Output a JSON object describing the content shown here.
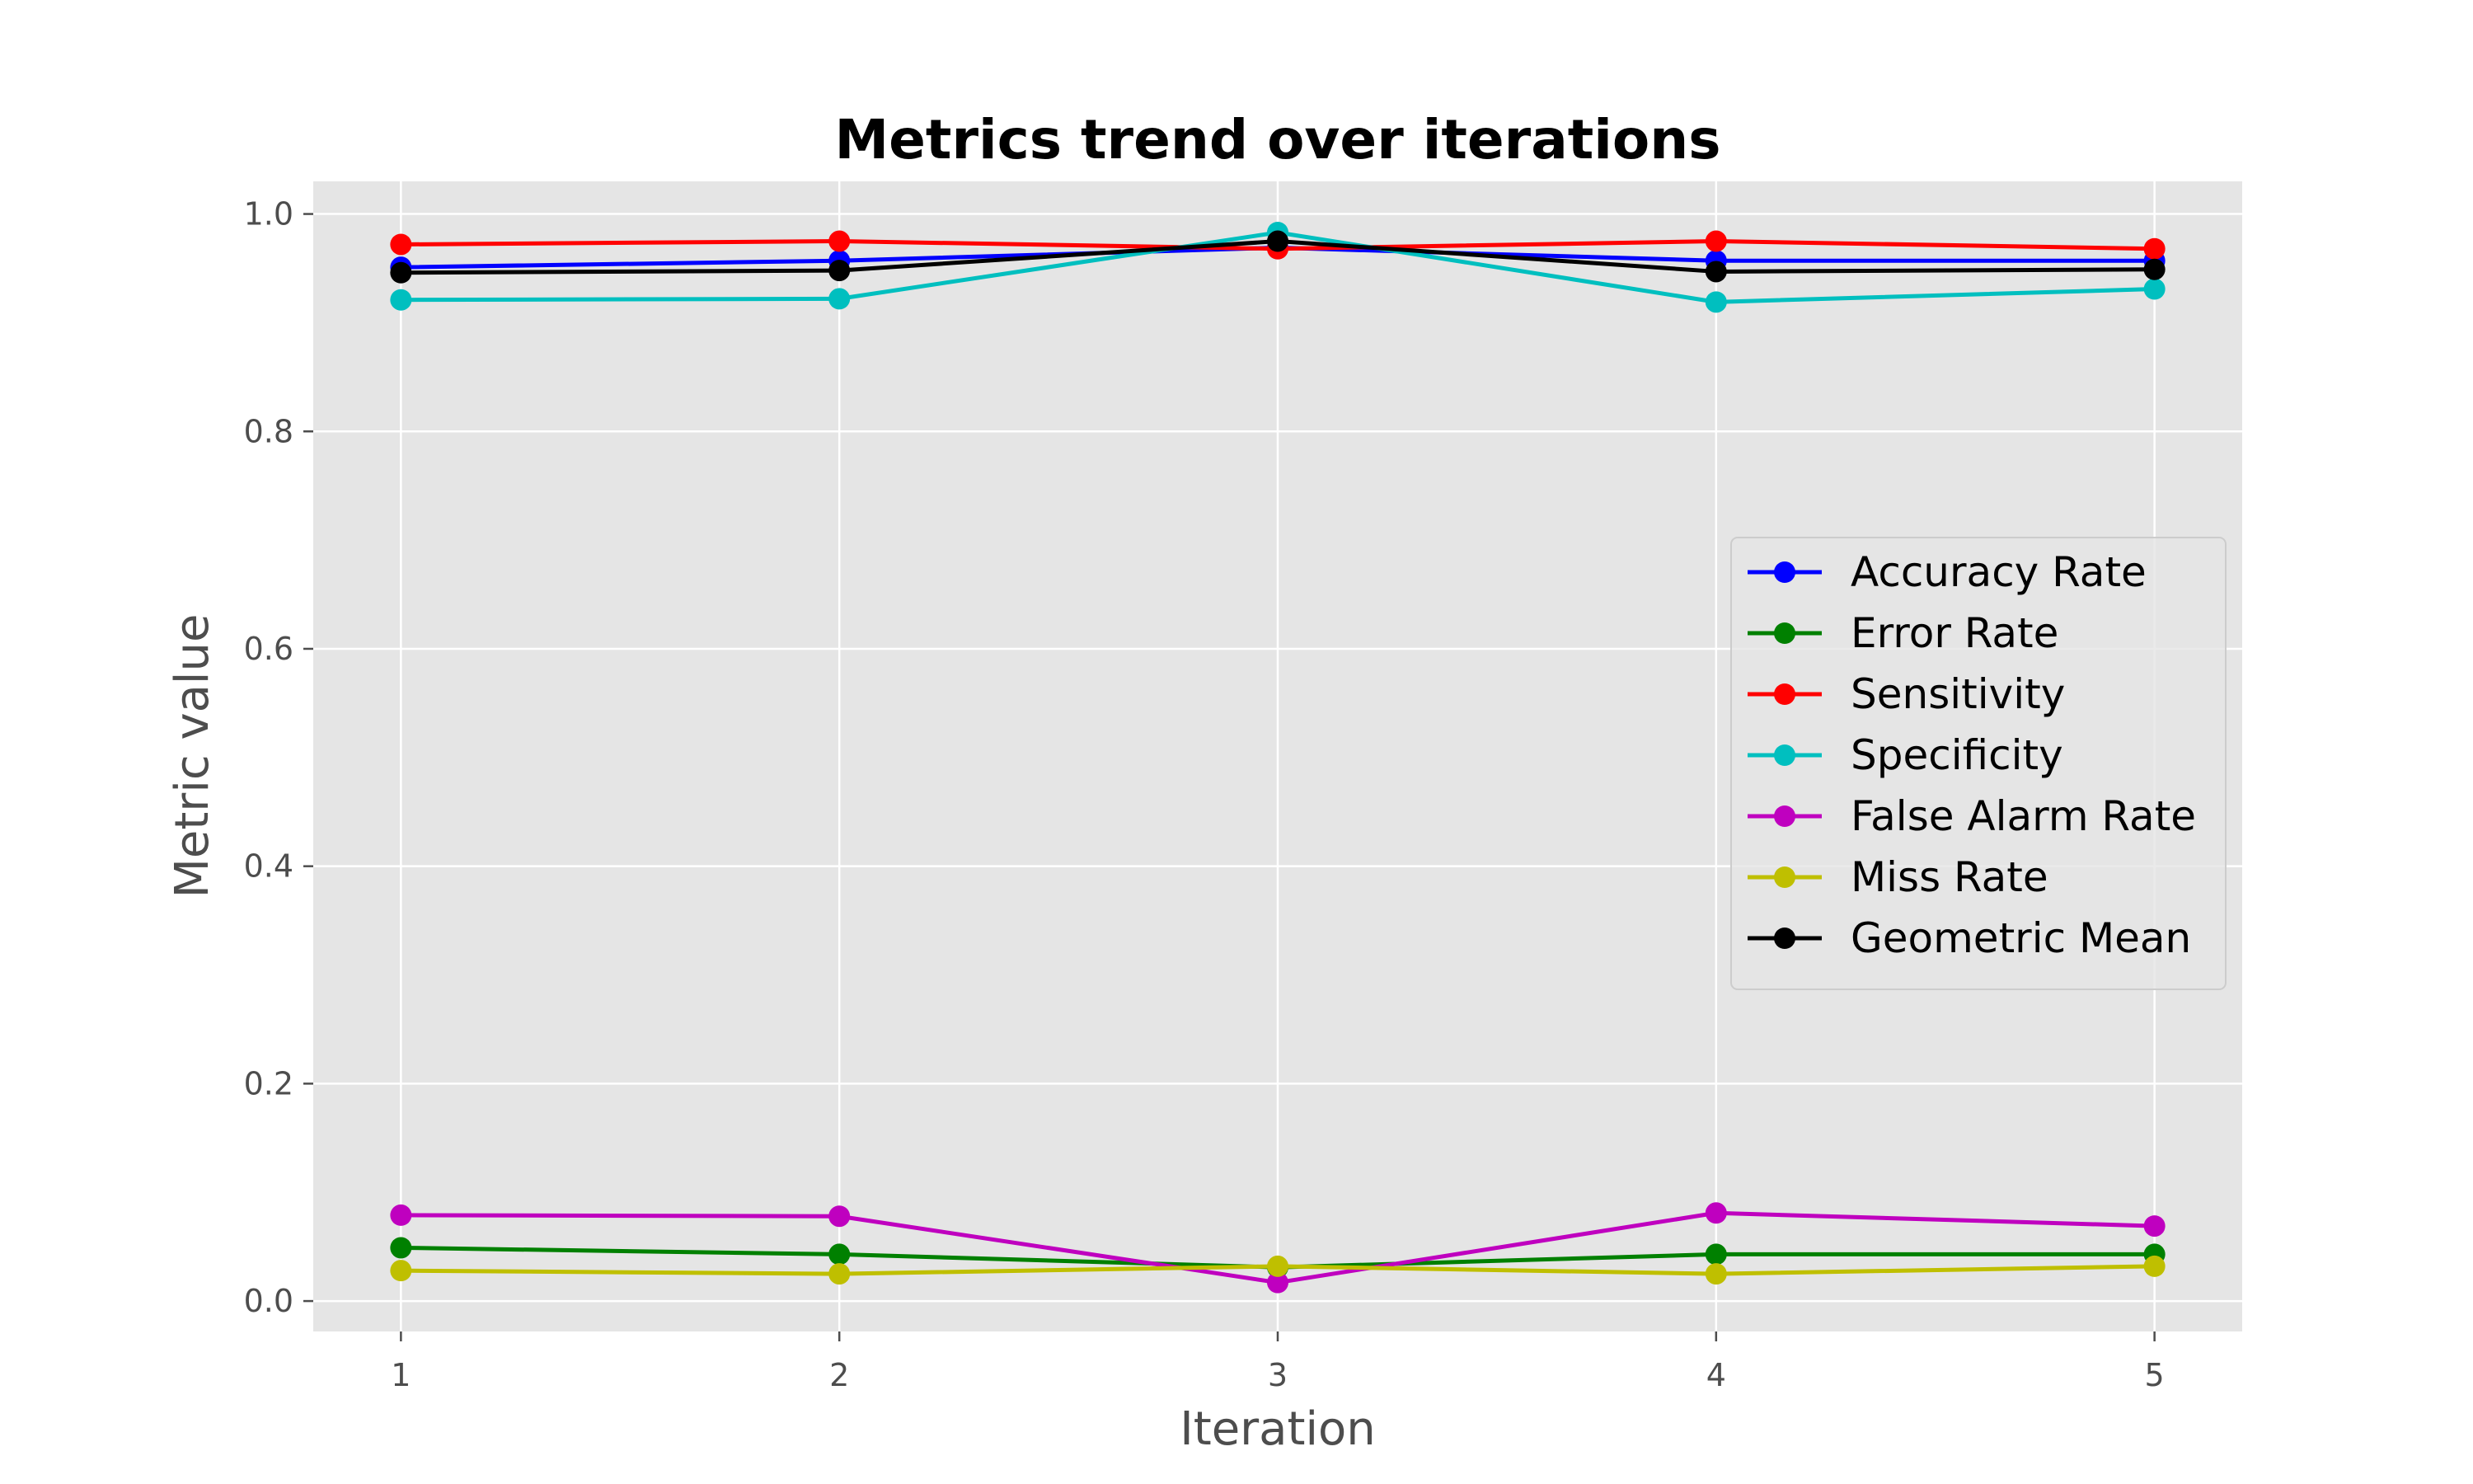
{
  "chart_data": {
    "type": "line",
    "title": "Metrics trend over iterations",
    "xlabel": "Iteration",
    "ylabel": "Metric value",
    "x": [
      1,
      2,
      3,
      4,
      5
    ],
    "xlim": [
      0.8,
      5.2
    ],
    "ylim": [
      -0.028,
      1.03
    ],
    "xticks": [
      "1",
      "2",
      "3",
      "4",
      "5"
    ],
    "yticks": [
      "0.0",
      "0.2",
      "0.4",
      "0.6",
      "0.8",
      "1.0"
    ],
    "ytick_values": [
      0.0,
      0.2,
      0.4,
      0.6,
      0.8,
      1.0
    ],
    "grid": true,
    "legend_position": "center-right",
    "background_color": "#e5e5e5",
    "grid_color": "#ffffff",
    "series": [
      {
        "name": "Accuracy Rate",
        "color": "#0000ff",
        "values": [
          0.951,
          0.957,
          0.969,
          0.957,
          0.957
        ]
      },
      {
        "name": "Error Rate",
        "color": "#008000",
        "values": [
          0.049,
          0.043,
          0.031,
          0.043,
          0.043
        ]
      },
      {
        "name": "Sensitivity",
        "color": "#ff0000",
        "values": [
          0.972,
          0.975,
          0.968,
          0.975,
          0.968
        ]
      },
      {
        "name": "Specificity",
        "color": "#00bfbf",
        "values": [
          0.921,
          0.922,
          0.983,
          0.919,
          0.931
        ]
      },
      {
        "name": "False Alarm Rate",
        "color": "#bf00bf",
        "values": [
          0.079,
          0.078,
          0.017,
          0.081,
          0.069
        ]
      },
      {
        "name": "Miss Rate",
        "color": "#bfbf00",
        "values": [
          0.028,
          0.025,
          0.032,
          0.025,
          0.032
        ]
      },
      {
        "name": "Geometric Mean",
        "color": "#000000",
        "values": [
          0.946,
          0.948,
          0.975,
          0.947,
          0.949
        ]
      }
    ]
  }
}
